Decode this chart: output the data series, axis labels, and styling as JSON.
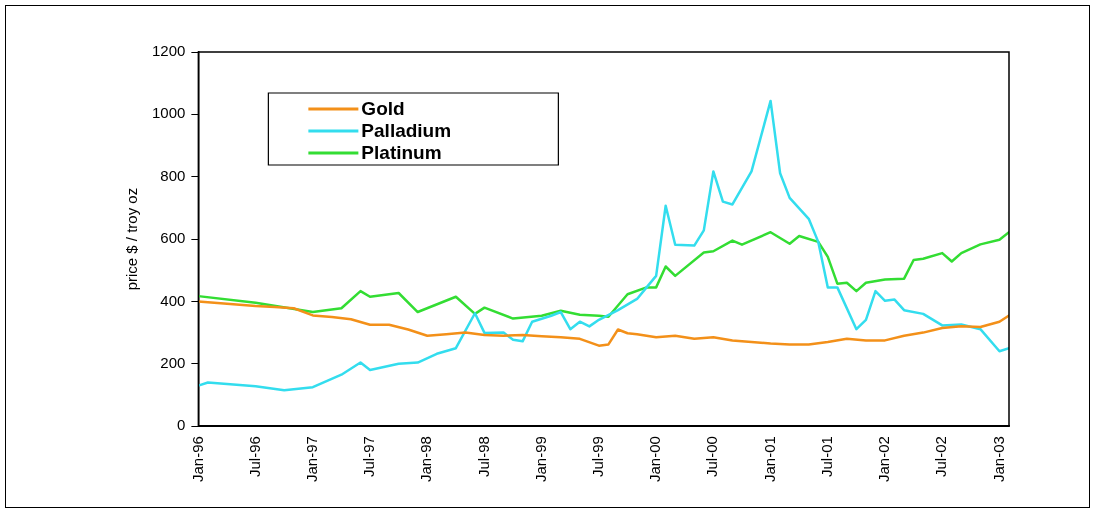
{
  "chart_data": {
    "type": "line",
    "ylabel": "price $ / troy oz",
    "ylim": [
      0,
      1200
    ],
    "yticks": [
      0,
      200,
      400,
      600,
      800,
      1000,
      1200
    ],
    "xlim": [
      "1996-01",
      "2003-02"
    ],
    "xticks": [
      {
        "value": "1996-01",
        "label": "Jan-96"
      },
      {
        "value": "1996-07",
        "label": "Jul-96"
      },
      {
        "value": "1997-01",
        "label": "Jan-97"
      },
      {
        "value": "1997-07",
        "label": "Jul-97"
      },
      {
        "value": "1998-01",
        "label": "Jan-98"
      },
      {
        "value": "1998-07",
        "label": "Jul-98"
      },
      {
        "value": "1999-01",
        "label": "Jan-99"
      },
      {
        "value": "1999-07",
        "label": "Jul-99"
      },
      {
        "value": "2000-01",
        "label": "Jan-00"
      },
      {
        "value": "2000-07",
        "label": "Jul-00"
      },
      {
        "value": "2001-01",
        "label": "Jan-01"
      },
      {
        "value": "2001-07",
        "label": "Jul-01"
      },
      {
        "value": "2002-01",
        "label": "Jan-02"
      },
      {
        "value": "2002-07",
        "label": "Jul-02"
      },
      {
        "value": "2003-01",
        "label": "Jan-03"
      }
    ],
    "grid": false,
    "legend": "top left",
    "marker": "none",
    "series": [
      {
        "name": "Gold",
        "color": "#f39019",
        "x": [
          "1996-01",
          "1996-03",
          "1996-05",
          "1996-07",
          "1996-09",
          "1996-11",
          "1997-01",
          "1997-03",
          "1997-05",
          "1997-07",
          "1997-09",
          "1997-11",
          "1998-01",
          "1998-03",
          "1998-05",
          "1998-07",
          "1998-09",
          "1998-11",
          "1999-01",
          "1999-03",
          "1999-05",
          "1999-07",
          "1999-08",
          "1999-09",
          "1999-10",
          "1999-11",
          "2000-01",
          "2000-03",
          "2000-05",
          "2000-07",
          "2000-09",
          "2000-11",
          "2001-01",
          "2001-03",
          "2001-05",
          "2001-07",
          "2001-09",
          "2001-11",
          "2002-01",
          "2002-03",
          "2002-05",
          "2002-07",
          "2002-09",
          "2002-11",
          "2003-01",
          "2003-02"
        ],
        "values": [
          400,
          395,
          390,
          385,
          382,
          378,
          355,
          350,
          343,
          325,
          325,
          310,
          290,
          295,
          300,
          292,
          290,
          292,
          288,
          285,
          280,
          258,
          262,
          310,
          298,
          295,
          285,
          290,
          280,
          285,
          275,
          270,
          265,
          262,
          262,
          270,
          280,
          275,
          275,
          290,
          300,
          315,
          320,
          318,
          335,
          355
        ]
      },
      {
        "name": "Palladium",
        "color": "#33ddee",
        "x": [
          "1996-01",
          "1996-02",
          "1996-07",
          "1996-10",
          "1997-01",
          "1997-04",
          "1997-06",
          "1997-07",
          "1997-10",
          "1997-12",
          "1998-02",
          "1998-04",
          "1998-06",
          "1998-07",
          "1998-09",
          "1998-10",
          "1998-11",
          "1998-12",
          "1999-02",
          "1999-03",
          "1999-04",
          "1999-05",
          "1999-06",
          "1999-07",
          "1999-09",
          "1999-11",
          "1999-12",
          "2000-01",
          "2000-02",
          "2000-03",
          "2000-05",
          "2000-06",
          "2000-07",
          "2000-08",
          "2000-09",
          "2000-11",
          "2001-01",
          "2001-02",
          "2001-03",
          "2001-05",
          "2001-06",
          "2001-07",
          "2001-08",
          "2001-10",
          "2001-11",
          "2001-12",
          "2002-01",
          "2002-02",
          "2002-03",
          "2002-05",
          "2002-07",
          "2002-09",
          "2002-11",
          "2003-01",
          "2003-02"
        ],
        "values": [
          130,
          140,
          128,
          115,
          125,
          165,
          204,
          180,
          200,
          204,
          232,
          250,
          362,
          299,
          300,
          277,
          272,
          335,
          354,
          366,
          311,
          335,
          320,
          341,
          372,
          408,
          445,
          482,
          707,
          582,
          579,
          628,
          817,
          720,
          711,
          817,
          1043,
          811,
          732,
          665,
          591,
          445,
          445,
          311,
          341,
          433,
          402,
          406,
          372,
          360,
          323,
          326,
          311,
          240,
          250
        ]
      },
      {
        "name": "Platinum",
        "color": "#33dd33",
        "x": [
          "1996-01",
          "1996-07",
          "1997-01",
          "1997-04",
          "1997-06",
          "1997-07",
          "1997-10",
          "1997-12",
          "1998-04",
          "1998-06",
          "1998-07",
          "1998-10",
          "1999-01",
          "1999-03",
          "1999-05",
          "1999-07",
          "1999-08",
          "1999-10",
          "1999-12",
          "2000-01",
          "2000-02",
          "2000-03",
          "2000-06",
          "2000-07",
          "2000-09",
          "2000-10",
          "2001-01",
          "2001-03",
          "2001-04",
          "2001-06",
          "2001-07",
          "2001-08",
          "2001-09",
          "2001-10",
          "2001-11",
          "2002-01",
          "2002-03",
          "2002-04",
          "2002-05",
          "2002-07",
          "2002-08",
          "2002-09",
          "2002-11",
          "2003-01",
          "2003-02"
        ],
        "values": [
          417,
          396,
          366,
          378,
          433,
          415,
          427,
          366,
          415,
          360,
          380,
          345,
          354,
          370,
          357,
          354,
          351,
          423,
          445,
          445,
          512,
          482,
          557,
          561,
          595,
          582,
          622,
          585,
          610,
          591,
          543,
          457,
          460,
          433,
          460,
          470,
          473,
          533,
          537,
          555,
          528,
          555,
          583,
          598,
          622
        ]
      }
    ]
  }
}
